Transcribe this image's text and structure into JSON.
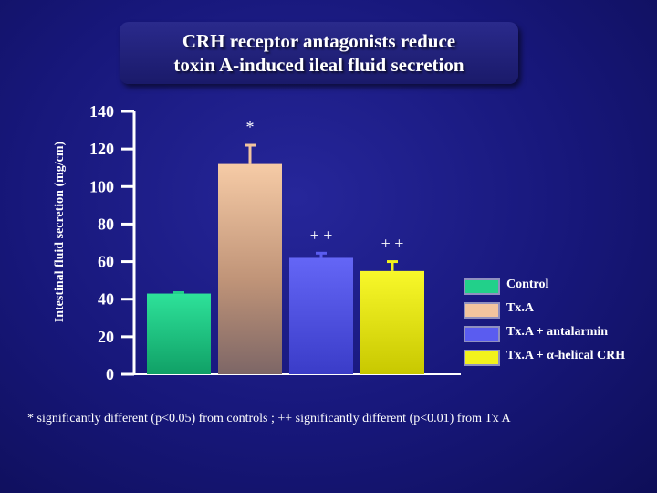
{
  "title": {
    "line1": "CRH receptor antagonists reduce",
    "line2": "toxin A-induced ileal fluid secretion"
  },
  "footnote": "* significantly different (p<0.05) from controls ;  ++ significantly different (p<0.01) from Tx A",
  "chart_data": {
    "type": "bar",
    "title": "CRH receptor antagonists reduce toxin A-induced ileal fluid secretion",
    "ylabel": "Intestinal fluid secretion (mg/cm)",
    "xlabel": "",
    "ylim": [
      0,
      140
    ],
    "yticks": [
      0,
      20,
      40,
      60,
      80,
      100,
      120,
      140
    ],
    "grid": false,
    "legend_position": "right",
    "categories": [
      "Control",
      "Tx.A",
      "Tx.A + antalarmin",
      "Tx.A + α-helical CRH"
    ],
    "values": [
      43,
      112,
      62,
      55
    ],
    "errors": [
      0.5,
      10,
      2.5,
      5
    ],
    "annotations": [
      "",
      "*",
      "+ +",
      "+ +"
    ],
    "colors": [
      "#22d08a",
      "#f2c49e",
      "#5a5cf0",
      "#f2f21c"
    ]
  }
}
